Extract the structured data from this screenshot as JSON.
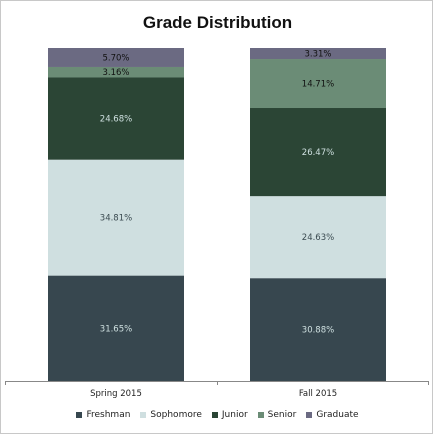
{
  "chart_data": {
    "type": "bar",
    "stacked": true,
    "title": "Grade Distribution",
    "categories": [
      "Spring 2015",
      "Fall 2015"
    ],
    "series": [
      {
        "name": "Freshman",
        "color": "#37474f",
        "values": [
          31.65,
          30.88
        ],
        "labels": [
          "31.65%",
          "30.88%"
        ]
      },
      {
        "name": "Sophomore",
        "color": "#cfdfe0",
        "values": [
          34.81,
          24.63
        ],
        "labels": [
          "34.81%",
          "24.63%"
        ]
      },
      {
        "name": "Junior",
        "color": "#2b4535",
        "values": [
          24.68,
          26.47
        ],
        "labels": [
          "24.68%",
          "26.47%"
        ]
      },
      {
        "name": "Senior",
        "color": "#6b8c76",
        "values": [
          3.16,
          14.71
        ],
        "labels": [
          "3.16%",
          "14.71%"
        ]
      },
      {
        "name": "Graduate",
        "color": "#6b6a82",
        "values": [
          5.7,
          3.31
        ],
        "labels": [
          "5.70%",
          "3.31%"
        ]
      }
    ],
    "ylim": [
      0,
      100
    ],
    "grid": false,
    "legend_position": "bottom"
  }
}
